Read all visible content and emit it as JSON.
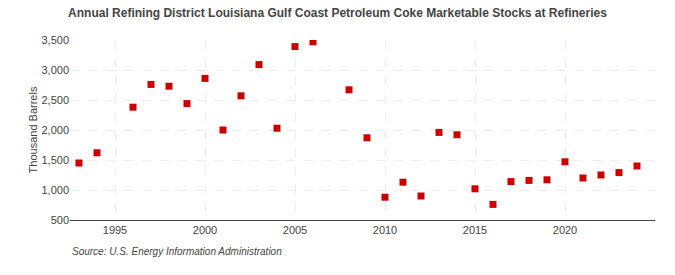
{
  "chart_data": {
    "type": "scatter",
    "title": "Annual Refining District Louisiana Gulf Coast Petroleum Coke Marketable Stocks at Refineries",
    "ylabel": "Thousand Barrels",
    "annotations": [
      {
        "text": "Source: U.S. Energy Information Administration"
      }
    ],
    "x": [
      1993,
      1994,
      1996,
      1997,
      1998,
      1999,
      2000,
      2001,
      2002,
      2003,
      2004,
      2005,
      2006,
      2008,
      2009,
      2010,
      2011,
      2012,
      2013,
      2014,
      2015,
      2016,
      2017,
      2018,
      2019,
      2020,
      2021,
      2022,
      2023,
      2024
    ],
    "values": [
      1450,
      1620,
      2380,
      2760,
      2730,
      2440,
      2860,
      2000,
      2570,
      3090,
      2030,
      3390,
      3470,
      2670,
      1870,
      880,
      1130,
      900,
      1960,
      1920,
      1020,
      760,
      1140,
      1160,
      1170,
      1470,
      1200,
      1250,
      1290,
      1400
    ],
    "color": "#cc0000",
    "marker": "square",
    "xlim": [
      1992.5,
      2025
    ],
    "xticks": [
      1995,
      2000,
      2005,
      2010,
      2015,
      2020
    ],
    "ylim": [
      500,
      3500
    ],
    "yticks": [
      500,
      {
        "value": 1000,
        "label": "1,000"
      },
      {
        "value": 1500,
        "label": "1,500"
      },
      {
        "value": 2000,
        "label": "2,000"
      },
      {
        "value": 2500,
        "label": "2,500"
      },
      {
        "value": 3000,
        "label": "3,000"
      },
      {
        "value": 3500,
        "label": "3,500"
      }
    ],
    "grid": true
  }
}
